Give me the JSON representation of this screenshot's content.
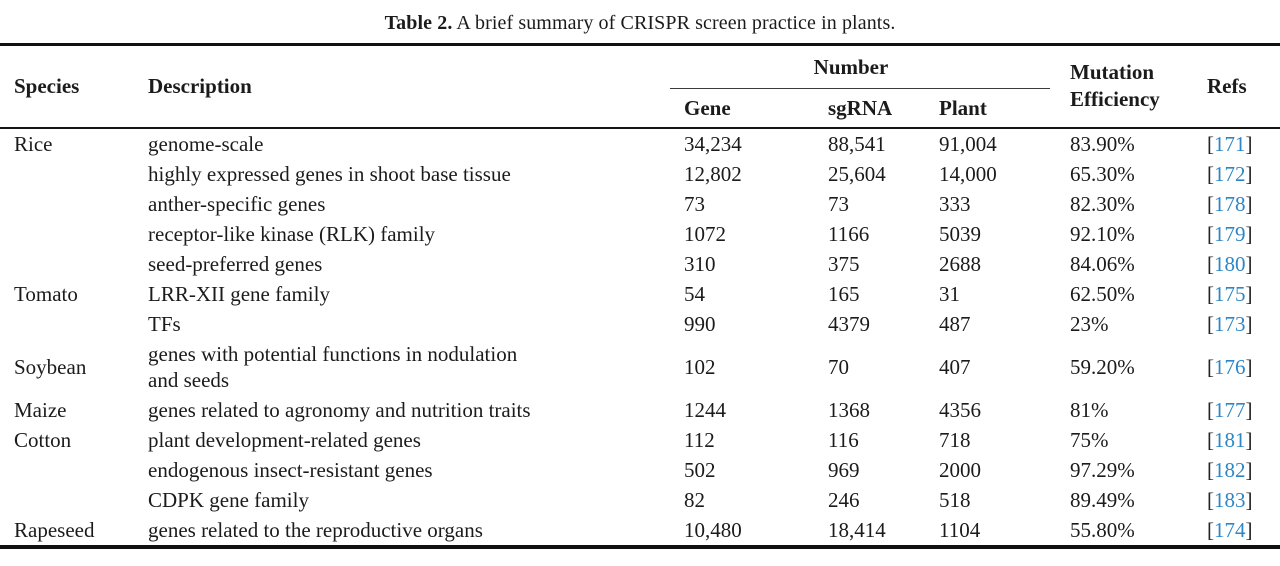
{
  "caption": {
    "label": "Table 2.",
    "text": " A brief summary of CRISPR screen practice in plants."
  },
  "table": {
    "headers": {
      "species": "Species",
      "description": "Description",
      "number_group": "Number",
      "gene": "Gene",
      "sgrna": "sgRNA",
      "plant": "Plant",
      "mutation_efficiency": "Mutation Efficiency",
      "refs": "Refs"
    },
    "rows": [
      {
        "species": "Rice",
        "description": "genome-scale",
        "gene": "34,234",
        "sgrna": "88,541",
        "plant": "91,004",
        "mutation": "83.90%",
        "ref": "171"
      },
      {
        "species": "",
        "description": "highly expressed genes in shoot base tissue",
        "gene": "12,802",
        "sgrna": "25,604",
        "plant": "14,000",
        "mutation": "65.30%",
        "ref": "172"
      },
      {
        "species": "",
        "description": "anther-specific genes",
        "gene": "73",
        "sgrna": "73",
        "plant": "333",
        "mutation": "82.30%",
        "ref": "178"
      },
      {
        "species": "",
        "description": "receptor-like kinase (RLK) family",
        "gene": "1072",
        "sgrna": "1166",
        "plant": "5039",
        "mutation": "92.10%",
        "ref": "179"
      },
      {
        "species": "",
        "description": "seed-preferred genes",
        "gene": "310",
        "sgrna": "375",
        "plant": "2688",
        "mutation": "84.06%",
        "ref": "180"
      },
      {
        "species": "Tomato",
        "description": "LRR-XII gene family",
        "gene": "54",
        "sgrna": "165",
        "plant": "31",
        "mutation": "62.50%",
        "ref": "175"
      },
      {
        "species": "",
        "description": "TFs",
        "gene": "990",
        "sgrna": "4379",
        "plant": "487",
        "mutation": "23%",
        "ref": "173"
      },
      {
        "species": "Soybean",
        "description": "genes with potential functions in nodulation\nand seeds",
        "gene": "102",
        "sgrna": "70",
        "plant": "407",
        "mutation": "59.20%",
        "ref": "176"
      },
      {
        "species": "Maize",
        "description": "genes related to agronomy and nutrition traits",
        "gene": "1244",
        "sgrna": "1368",
        "plant": "4356",
        "mutation": "81%",
        "ref": "177"
      },
      {
        "species": "Cotton",
        "description": "plant development-related genes",
        "gene": "112",
        "sgrna": "116",
        "plant": "718",
        "mutation": "75%",
        "ref": "181"
      },
      {
        "species": "",
        "description": "endogenous insect-resistant genes",
        "gene": "502",
        "sgrna": "969",
        "plant": "2000",
        "mutation": "97.29%",
        "ref": "182"
      },
      {
        "species": "",
        "description": "CDPK gene family",
        "gene": "82",
        "sgrna": "246",
        "plant": "518",
        "mutation": "89.49%",
        "ref": "183"
      },
      {
        "species": "Rapeseed",
        "description": "genes related to the reproductive organs",
        "gene": "10,480",
        "sgrna": "18,414",
        "plant": "1104",
        "mutation": "55.80%",
        "ref": "174"
      }
    ]
  },
  "colors": {
    "ref_blue": "#2e86c4",
    "text": "#1b1b1b",
    "rule": "#101010"
  }
}
